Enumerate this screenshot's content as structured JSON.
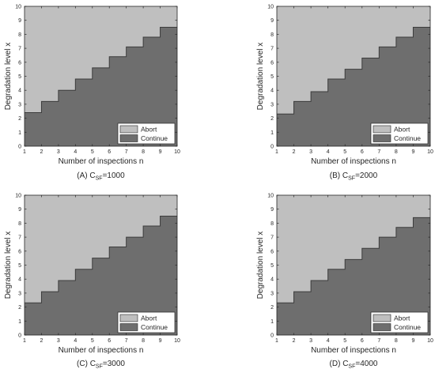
{
  "colors": {
    "abort": "#bfbfbf",
    "continue": "#6e6e6e",
    "axis": "#262626",
    "boundary": "#3c3c3c"
  },
  "chart_data": [
    {
      "type": "area",
      "caption_prefix": "(A) C",
      "caption_sub": "SF",
      "caption_suffix": "=1000",
      "xlabel": "Number of inspections n",
      "ylabel": "Degradation level x",
      "xlim": [
        1,
        10
      ],
      "ylim": [
        0,
        10
      ],
      "xticks": [
        1,
        2,
        3,
        4,
        5,
        6,
        7,
        8,
        9,
        10
      ],
      "yticks": [
        0,
        1,
        2,
        3,
        4,
        5,
        6,
        7,
        8,
        9,
        10
      ],
      "legend": {
        "position": "bottom-right",
        "entries": [
          "Abort",
          "Continue"
        ]
      },
      "series": [
        {
          "name": "Continue",
          "x": [
            1,
            2,
            3,
            4,
            5,
            6,
            7,
            8,
            9,
            10
          ],
          "y": [
            2.4,
            3.2,
            4.0,
            4.8,
            5.6,
            6.4,
            7.1,
            7.8,
            8.5,
            8.5
          ]
        }
      ]
    },
    {
      "type": "area",
      "caption_prefix": "(B) C",
      "caption_sub": "SF",
      "caption_suffix": "=2000",
      "xlabel": "Number of inspections n",
      "ylabel": "Degradation level x",
      "xlim": [
        1,
        10
      ],
      "ylim": [
        0,
        10
      ],
      "xticks": [
        1,
        2,
        3,
        4,
        5,
        6,
        7,
        8,
        9,
        10
      ],
      "yticks": [
        0,
        1,
        2,
        3,
        4,
        5,
        6,
        7,
        8,
        9,
        10
      ],
      "legend": {
        "position": "bottom-right",
        "entries": [
          "Abort",
          "Continue"
        ]
      },
      "series": [
        {
          "name": "Continue",
          "x": [
            1,
            2,
            3,
            4,
            5,
            6,
            7,
            8,
            9,
            10
          ],
          "y": [
            2.3,
            3.2,
            3.9,
            4.8,
            5.5,
            6.3,
            7.1,
            7.8,
            8.5,
            8.5
          ]
        }
      ]
    },
    {
      "type": "area",
      "caption_prefix": "(C) C",
      "caption_sub": "SF",
      "caption_suffix": "=3000",
      "xlabel": "Number of inspections n",
      "ylabel": "Degradation level x",
      "xlim": [
        1,
        10
      ],
      "ylim": [
        0,
        10
      ],
      "xticks": [
        1,
        2,
        3,
        4,
        5,
        6,
        7,
        8,
        9,
        10
      ],
      "yticks": [
        0,
        1,
        2,
        3,
        4,
        5,
        6,
        7,
        8,
        9,
        10
      ],
      "legend": {
        "position": "bottom-right",
        "entries": [
          "Abort",
          "Continue"
        ]
      },
      "series": [
        {
          "name": "Continue",
          "x": [
            1,
            2,
            3,
            4,
            5,
            6,
            7,
            8,
            9,
            10
          ],
          "y": [
            2.3,
            3.1,
            3.9,
            4.7,
            5.5,
            6.3,
            7.0,
            7.8,
            8.5,
            8.5
          ]
        }
      ]
    },
    {
      "type": "area",
      "caption_prefix": "(D) C",
      "caption_sub": "SF",
      "caption_suffix": "=4000",
      "xlabel": "Number of inspections n",
      "ylabel": "Degradation level x",
      "xlim": [
        1,
        10
      ],
      "ylim": [
        0,
        10
      ],
      "xticks": [
        1,
        2,
        3,
        4,
        5,
        6,
        7,
        8,
        9,
        10
      ],
      "yticks": [
        0,
        1,
        2,
        3,
        4,
        5,
        6,
        7,
        8,
        9,
        10
      ],
      "legend": {
        "position": "bottom-right",
        "entries": [
          "Abort",
          "Continue"
        ]
      },
      "series": [
        {
          "name": "Continue",
          "x": [
            1,
            2,
            3,
            4,
            5,
            6,
            7,
            8,
            9,
            10
          ],
          "y": [
            2.3,
            3.1,
            3.9,
            4.7,
            5.4,
            6.2,
            7.0,
            7.7,
            8.4,
            8.4
          ]
        }
      ]
    }
  ]
}
